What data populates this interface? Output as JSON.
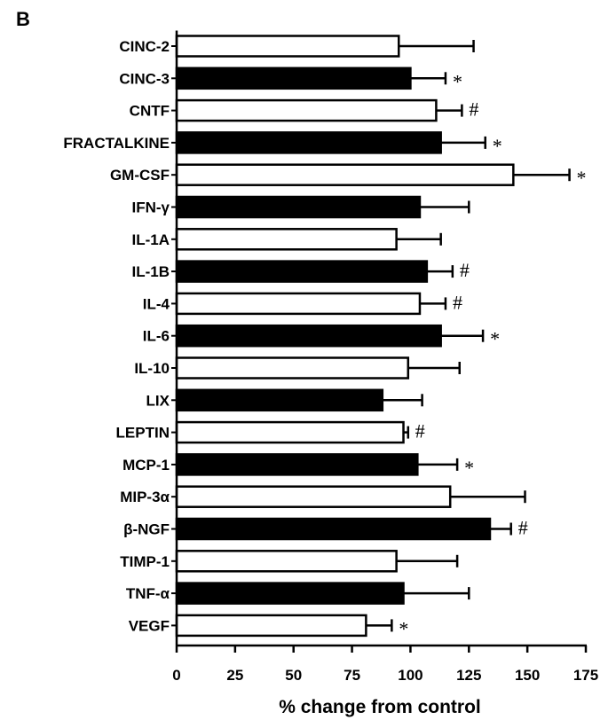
{
  "chart_data": {
    "type": "bar",
    "orientation": "horizontal",
    "panel_label": "B",
    "xlabel": "% change from control",
    "xlim": [
      0,
      175
    ],
    "x_ticks": [
      "0",
      "25",
      "50",
      "75",
      "100",
      "125",
      "150",
      "175"
    ],
    "grid": false,
    "categories": [
      "CINC-2",
      "CINC-3",
      "CNTF",
      "FRACTALKINE",
      "GM-CSF",
      "IFN-γ",
      "IL-1A",
      "IL-1B",
      "IL-4",
      "IL-6",
      "IL-10",
      "LIX",
      "LEPTIN",
      "MCP-1",
      "MIP-3α",
      "β-NGF",
      "TIMP-1",
      "TNF-α",
      "VEGF"
    ],
    "values": [
      95,
      100,
      111,
      113,
      144,
      104,
      94,
      107,
      104,
      113,
      99,
      88,
      97,
      103,
      117,
      134,
      94,
      97,
      81
    ],
    "errors": [
      32,
      15,
      11,
      19,
      24,
      21,
      19,
      11,
      11,
      18,
      22,
      17,
      2,
      17,
      32,
      9,
      26,
      28,
      11
    ],
    "fills": [
      "white",
      "black",
      "white",
      "black",
      "white",
      "black",
      "white",
      "black",
      "white",
      "black",
      "white",
      "black",
      "white",
      "black",
      "white",
      "black",
      "white",
      "black",
      "white"
    ],
    "significance": [
      "",
      "*",
      "#",
      "*",
      "*",
      "",
      "",
      "#",
      "#",
      "*",
      "",
      "",
      "#",
      "*",
      "",
      "#",
      "",
      "",
      "*"
    ],
    "colors": {
      "dark_bar": "#000000",
      "light_bar": "#ffffff",
      "outline": "#000000"
    }
  }
}
